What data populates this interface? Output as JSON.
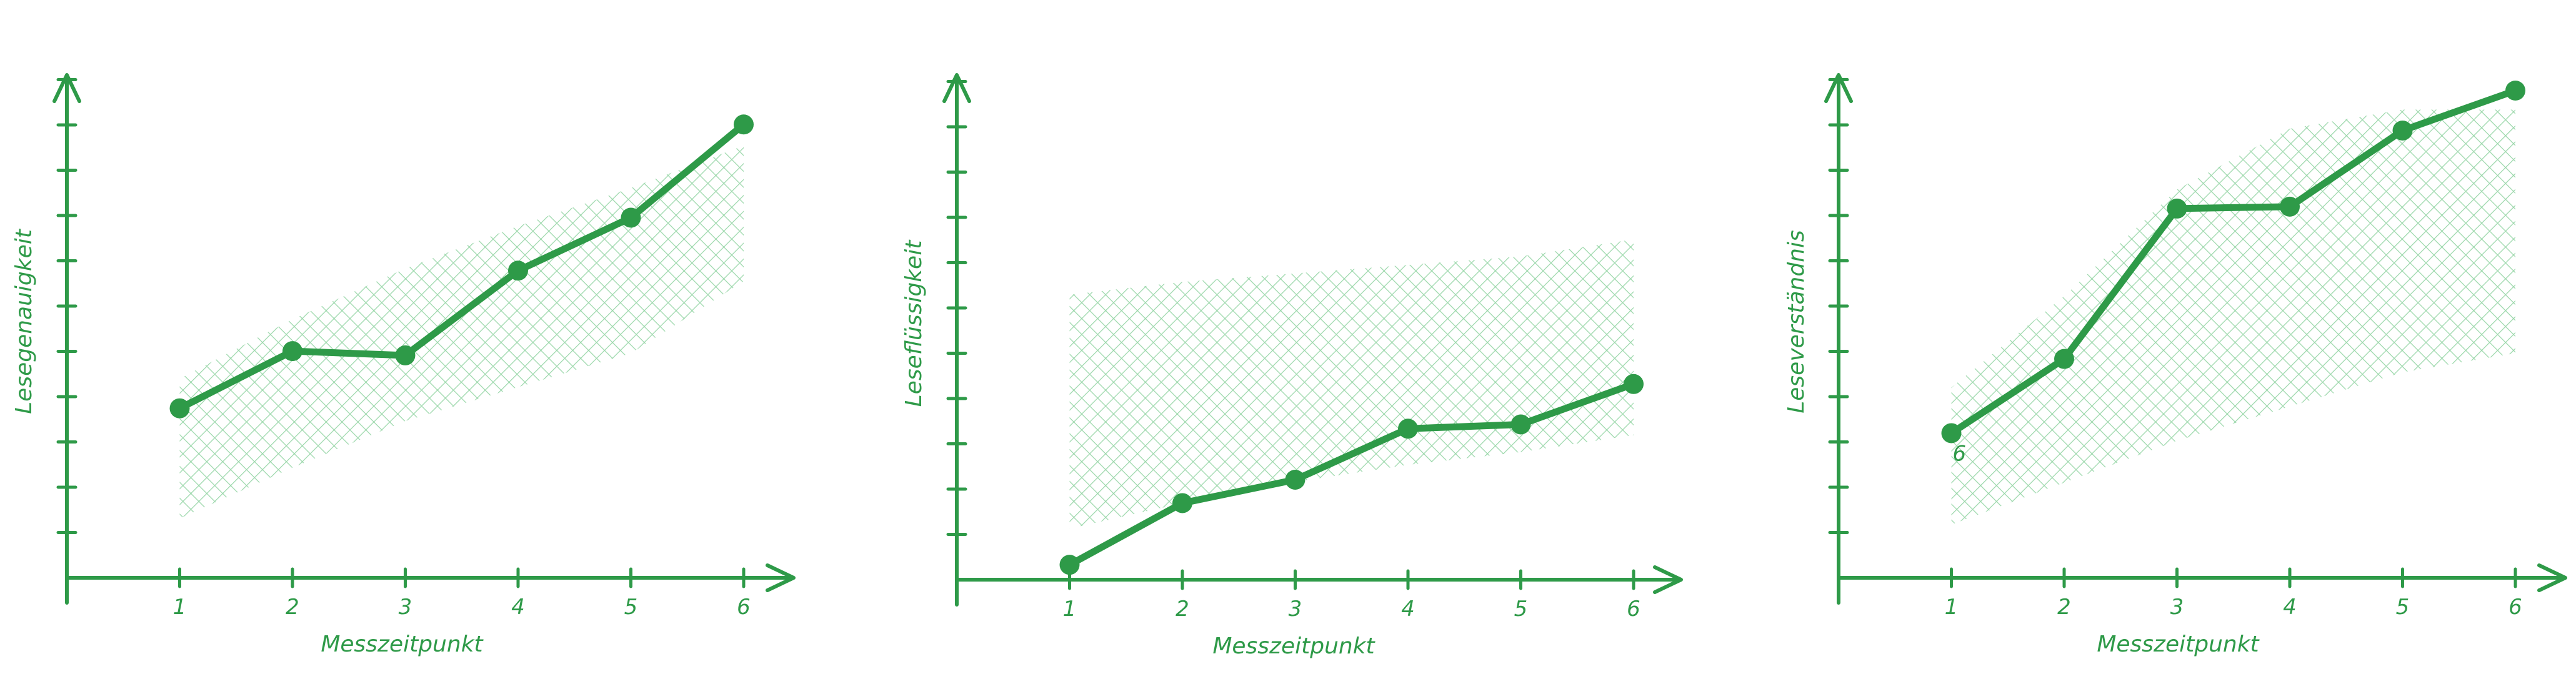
{
  "colors": {
    "accent": "#2e9a48",
    "band": "#8fd3a0"
  },
  "chart_data": [
    {
      "type": "line",
      "title": "",
      "xlabel": "Messzeitpunkt",
      "ylabel": "Lesegenauigkeit",
      "x": [
        1,
        2,
        3,
        4,
        5,
        6
      ],
      "x_tick_labels": [
        "1",
        "2",
        "3",
        "4",
        "5",
        "6"
      ],
      "series": [
        {
          "name": "Lesegenauigkeit",
          "values": [
            4.0,
            5.35,
            5.25,
            7.25,
            8.5,
            10.7
          ]
        }
      ],
      "band": {
        "lower": [
          1.4,
          2.6,
          3.7,
          4.5,
          5.3,
          7.0
        ],
        "upper": [
          4.7,
          6.1,
          7.3,
          8.3,
          9.2,
          10.2
        ]
      },
      "xlim": [
        0,
        6.6
      ],
      "ylim": [
        0,
        11.5
      ],
      "y_ticks": 11,
      "grid": false,
      "annotation": ""
    },
    {
      "type": "line",
      "title": "",
      "xlabel": "Messzeitpunkt",
      "ylabel": "Leseflüssigkeit",
      "x": [
        1,
        2,
        3,
        4,
        5,
        6
      ],
      "x_tick_labels": [
        "1",
        "2",
        "3",
        "4",
        "5",
        "6"
      ],
      "series": [
        {
          "name": "Leseflüssigkeit",
          "values": [
            0.35,
            1.8,
            2.35,
            3.55,
            3.65,
            4.6
          ]
        }
      ],
      "band": {
        "lower": [
          1.2,
          1.8,
          2.3,
          2.7,
          3.0,
          3.4
        ],
        "upper": [
          6.7,
          7.0,
          7.2,
          7.4,
          7.6,
          8.0
        ]
      },
      "xlim": [
        0,
        6.6
      ],
      "ylim": [
        0,
        11.5
      ],
      "y_ticks": 11,
      "grid": false,
      "annotation": ""
    },
    {
      "type": "line",
      "title": "",
      "xlabel": "Messzeitpunkt",
      "ylabel": "Leseverständnis",
      "x": [
        1,
        2,
        3,
        4,
        5,
        6
      ],
      "x_tick_labels": [
        "1",
        "2",
        "3",
        "4",
        "5",
        "6"
      ],
      "series": [
        {
          "name": "Leseverständnis",
          "values": [
            3.8,
            5.75,
            9.7,
            9.75,
            11.75,
            12.8
          ]
        }
      ],
      "band": {
        "lower": [
          1.4,
          2.5,
          3.6,
          4.5,
          5.4,
          5.9
        ],
        "upper": [
          5.0,
          7.4,
          10.2,
          11.8,
          12.3,
          12.3
        ]
      },
      "xlim": [
        0,
        6.6
      ],
      "ylim": [
        0,
        12.8
      ],
      "y_ticks": 11,
      "grid": false,
      "annotation": "6"
    }
  ]
}
